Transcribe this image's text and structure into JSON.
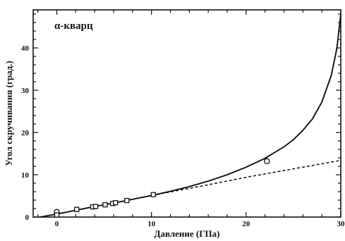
{
  "chart_data": {
    "type": "scatter",
    "title": "",
    "xlabel": "Давление (ГПа)",
    "ylabel": "Угол скручивания (град.)",
    "annotation": "α-кварц",
    "xlim": [
      -2.5,
      30
    ],
    "ylim": [
      0,
      49
    ],
    "xticks": [
      0,
      10,
      20,
      30
    ],
    "yticks": [
      0,
      10,
      20,
      30,
      40
    ],
    "grid": false,
    "legend": "none",
    "series": [
      {
        "type": "scatter",
        "marker": "circle",
        "points": [
          [
            0,
            1.2
          ],
          [
            22.2,
            13.2
          ]
        ]
      },
      {
        "type": "scatter",
        "marker": "square",
        "points": [
          [
            0,
            0.5
          ],
          [
            2.1,
            1.8
          ],
          [
            3.8,
            2.4
          ],
          [
            4.1,
            2.5
          ],
          [
            5.1,
            2.9
          ],
          [
            5.9,
            3.2
          ],
          [
            6.2,
            3.4
          ],
          [
            7.4,
            3.9
          ],
          [
            10.2,
            5.3
          ]
        ]
      },
      {
        "type": "line",
        "style": "solid",
        "points": [
          [
            -1.8,
            0.0
          ],
          [
            0,
            0.7
          ],
          [
            2,
            1.6
          ],
          [
            4,
            2.5
          ],
          [
            6,
            3.3
          ],
          [
            8,
            4.2
          ],
          [
            10,
            5.1
          ],
          [
            12,
            6.1
          ],
          [
            14,
            7.2
          ],
          [
            16,
            8.5
          ],
          [
            18,
            10.0
          ],
          [
            20,
            11.8
          ],
          [
            22,
            13.9
          ],
          [
            24,
            16.6
          ],
          [
            25,
            18.3
          ],
          [
            26,
            20.5
          ],
          [
            27,
            23.2
          ],
          [
            28,
            27.2
          ],
          [
            29,
            33.5
          ],
          [
            29.6,
            40.0
          ],
          [
            30,
            48.0
          ]
        ]
      },
      {
        "type": "line",
        "style": "dashed",
        "points": [
          [
            10,
            5.1
          ],
          [
            15,
            7.2
          ],
          [
            20,
            9.4
          ],
          [
            25,
            11.4
          ],
          [
            30,
            13.4
          ]
        ]
      }
    ]
  }
}
